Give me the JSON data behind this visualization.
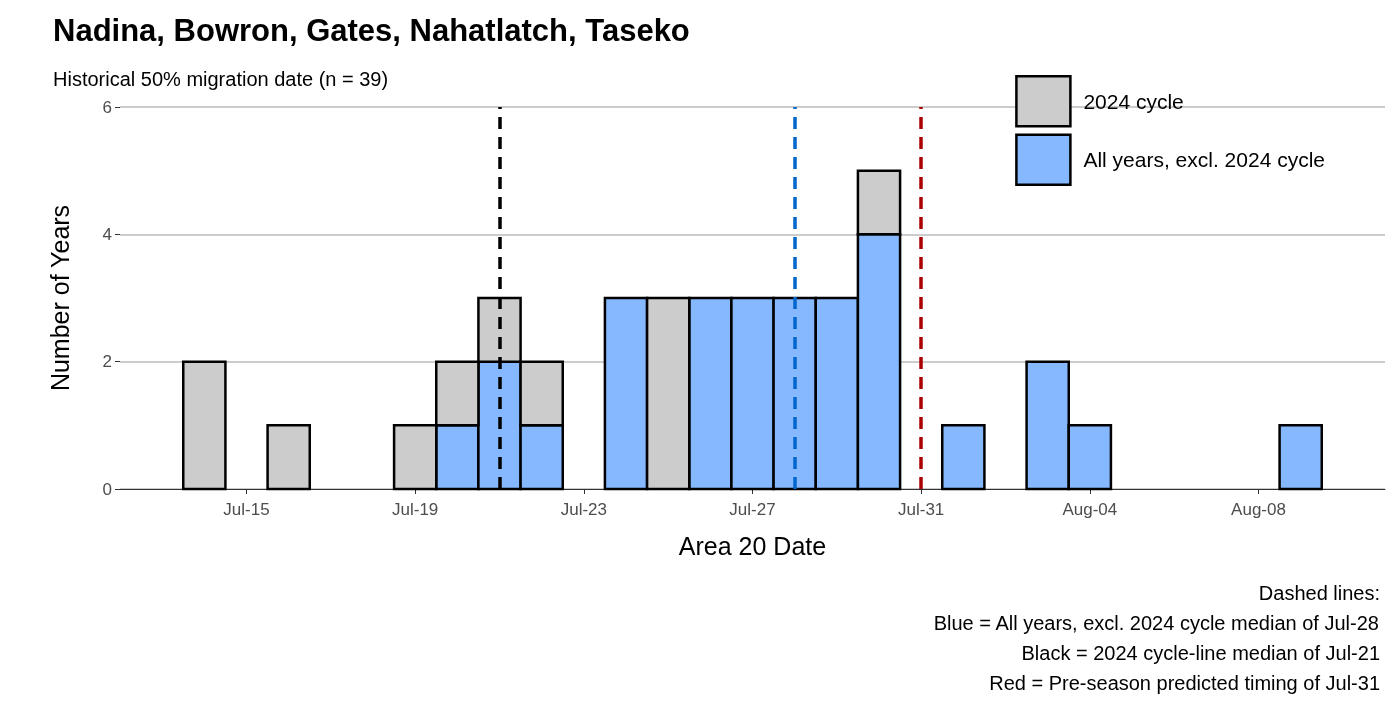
{
  "chart_data": {
    "type": "bar",
    "stacked": true,
    "title": "Nadina, Bowron, Gates, Nahatlatch, Taseko",
    "subtitle": "Historical 50% migration date (n = 39)",
    "xlabel": "Area 20 Date",
    "ylabel": "Number of Years",
    "x": [
      "--07-14",
      "--07-16",
      "--07-19",
      "--07-20",
      "--07-21",
      "--07-22",
      "--07-24",
      "--07-25",
      "--07-26",
      "--07-27",
      "--07-28",
      "--07-29",
      "--07-30",
      "--08-01",
      "--08-03",
      "--08-04",
      "--08-09"
    ],
    "series": [
      {
        "name": "All years, excl. 2024 cycle",
        "color": "#85b8ff",
        "values": [
          0,
          0,
          0,
          1,
          2,
          1,
          3,
          0,
          3,
          3,
          3,
          3,
          4,
          1,
          2,
          1,
          1
        ]
      },
      {
        "name": "2024 cycle",
        "color": "#cccccc",
        "values": [
          2,
          1,
          1,
          1,
          1,
          1,
          0,
          3,
          0,
          0,
          0,
          0,
          1,
          0,
          0,
          0,
          0
        ]
      }
    ],
    "xlim": [
      "--07-12",
      "--08-11"
    ],
    "xticks": [
      {
        "value": "--07-15",
        "label": "Jul-15"
      },
      {
        "value": "--07-19",
        "label": "Jul-19"
      },
      {
        "value": "--07-23",
        "label": "Jul-23"
      },
      {
        "value": "--07-27",
        "label": "Jul-27"
      },
      {
        "value": "--07-31",
        "label": "Jul-31"
      },
      {
        "value": "--08-04",
        "label": "Aug-04"
      },
      {
        "value": "--08-08",
        "label": "Aug-08"
      }
    ],
    "ylim": [
      0,
      6
    ],
    "yticks": [
      0,
      2,
      4,
      6
    ],
    "grid": "y",
    "legend": "top right",
    "ref_lines": [
      {
        "axis": "x",
        "value": "--07-21",
        "label": null,
        "color": "#000000",
        "line_style": "dashed"
      },
      {
        "axis": "x",
        "value": "--07-28",
        "label": null,
        "color": "#0066cc",
        "line_style": "dashed"
      },
      {
        "axis": "x",
        "value": "--07-31",
        "label": null,
        "color": "#aa0000",
        "line_style": "dashed"
      }
    ],
    "annotations": [
      "Dashed lines:",
      "Blue = All years, excl. 2024 cycle median of Jul-28",
      "Black = 2024 cycle-line median of Jul-21",
      "Red = Pre-season predicted timing of Jul-31"
    ]
  }
}
